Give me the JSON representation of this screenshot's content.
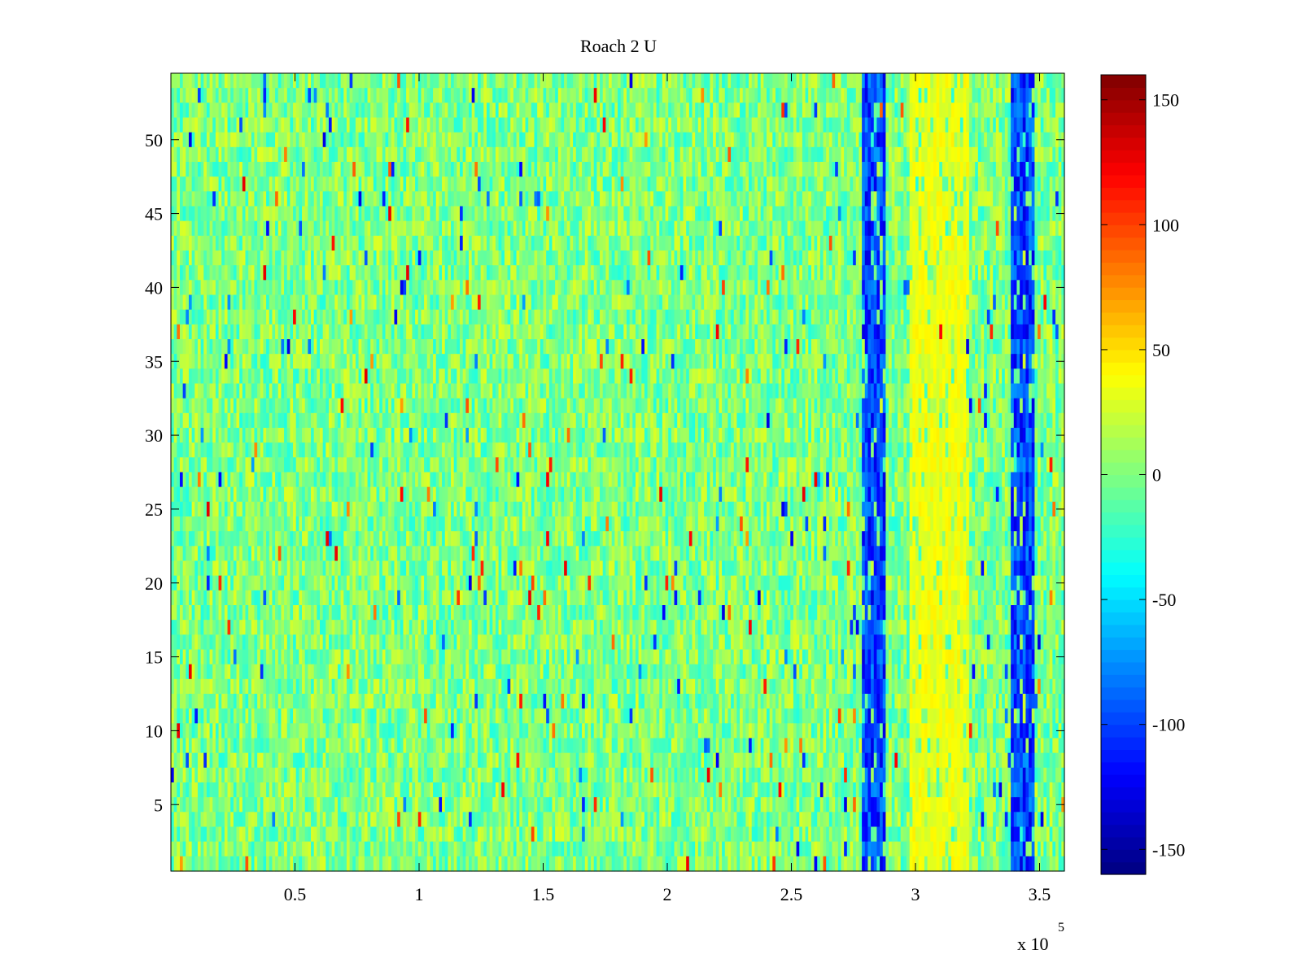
{
  "chart_data": {
    "type": "heatmap",
    "title": "Roach 2 U",
    "xlabel": "",
    "ylabel": "",
    "x_exponent_label": "x 10",
    "x_exponent_power": "5",
    "x_range": [
      0,
      3.6
    ],
    "x_range_units": "x 10^5",
    "y_range": [
      0.5,
      54.5
    ],
    "rows": 54,
    "x_ticks": [
      0.5,
      1,
      1.5,
      2,
      2.5,
      3,
      3.5
    ],
    "x_tick_labels": [
      "0.5",
      "1",
      "1.5",
      "2",
      "2.5",
      "3",
      "3.5"
    ],
    "y_ticks": [
      5,
      10,
      15,
      20,
      25,
      30,
      35,
      40,
      45,
      50
    ],
    "y_tick_labels": [
      "5",
      "10",
      "15",
      "20",
      "25",
      "30",
      "35",
      "40",
      "45",
      "50"
    ],
    "colorbar": {
      "colormap": "jet",
      "range": [
        -160,
        160
      ],
      "ticks": [
        -150,
        -100,
        -50,
        0,
        50,
        100,
        150
      ],
      "tick_labels": [
        "-150",
        "-100",
        "-50",
        "0",
        "50",
        "100",
        "150"
      ]
    },
    "background_value_range": [
      -30,
      30
    ],
    "features": [
      {
        "name": "strong negative band",
        "x_range": [
          2.78,
          2.88
        ],
        "value": -130
      },
      {
        "name": "positive band",
        "x_range": [
          2.97,
          3.22
        ],
        "value": 45
      },
      {
        "name": "strong negative band",
        "x_range": [
          3.38,
          3.48
        ],
        "value": -130
      }
    ],
    "grid": false,
    "legend": "colorbar-right"
  }
}
